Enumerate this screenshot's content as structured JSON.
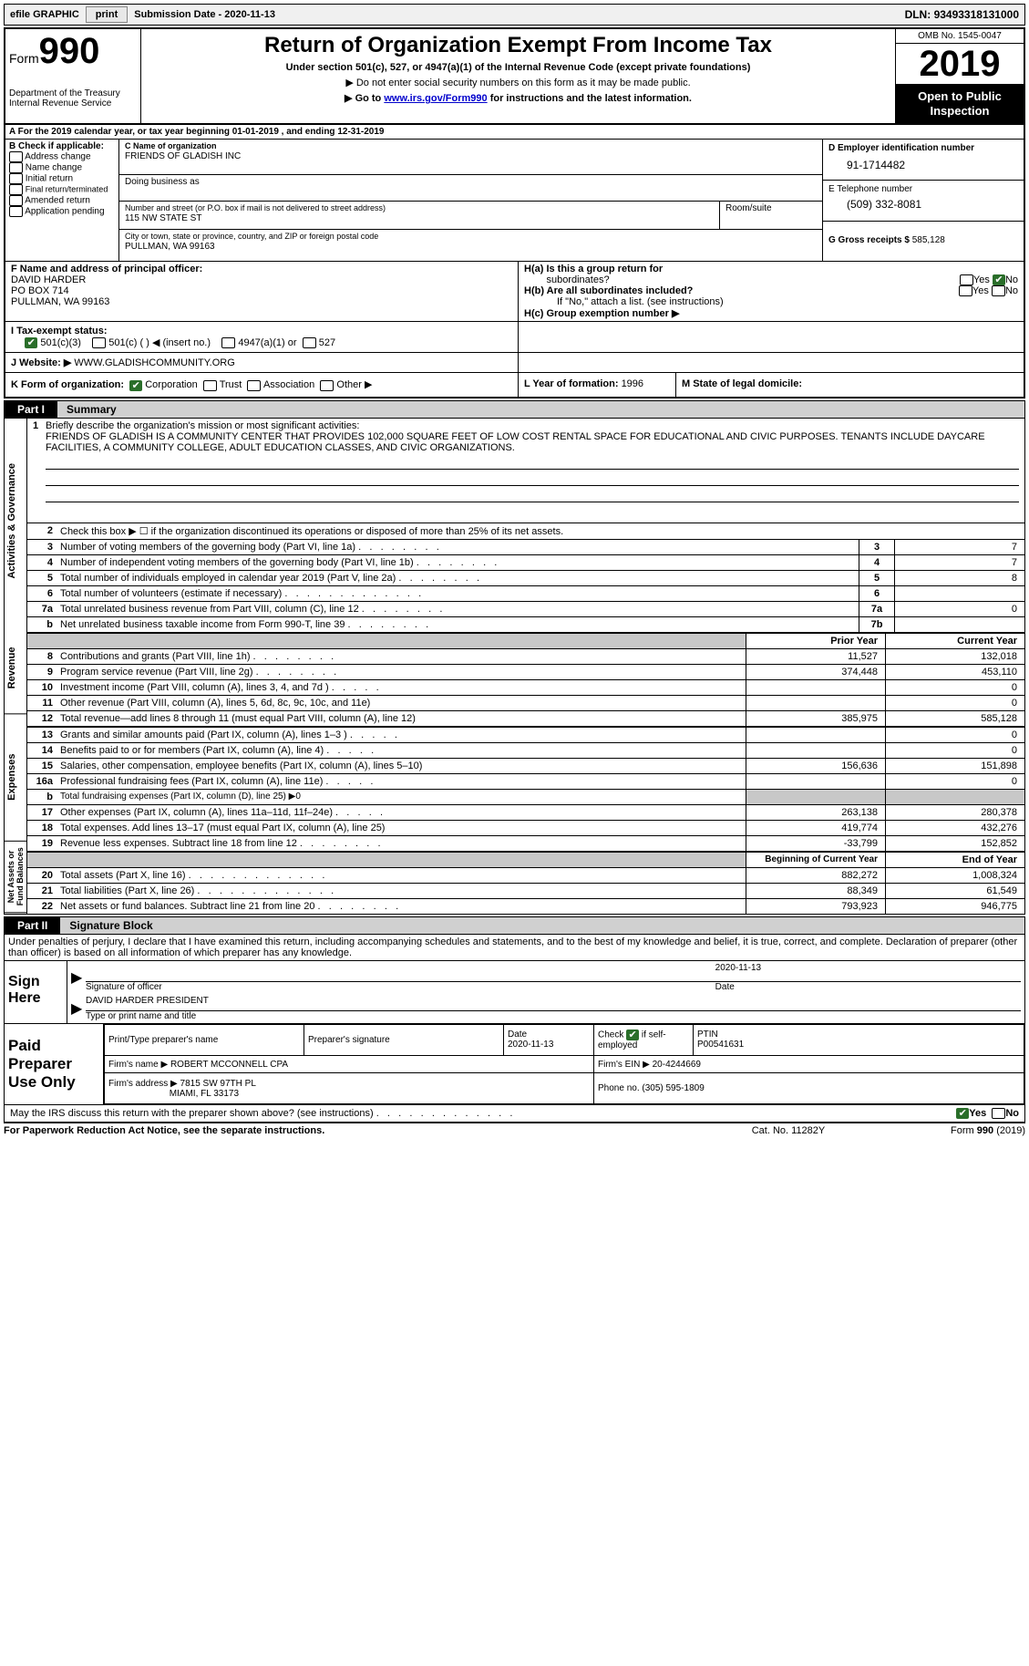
{
  "topbar": {
    "efile_label": "efile GRAPHIC",
    "print_btn": "print",
    "submission_label": "Submission Date - ",
    "submission_date": "2020-11-13",
    "dln_label": "DLN: ",
    "dln": "93493318131000"
  },
  "header": {
    "form_word": "Form",
    "form_num": "990",
    "dept1": "Department of the Treasury",
    "dept2": "Internal Revenue Service",
    "title": "Return of Organization Exempt From Income Tax",
    "sub1": "Under section 501(c), 527, or 4947(a)(1) of the Internal Revenue Code (except private foundations)",
    "sub2": "▶ Do not enter social security numbers on this form as it may be made public.",
    "sub3a": "▶ Go to ",
    "sub3_link": "www.irs.gov/Form990",
    "sub3b": " for instructions and the latest information.",
    "omb": "OMB No. 1545-0047",
    "year": "2019",
    "otp1": "Open to Public",
    "otp2": "Inspection"
  },
  "row_a": "A For the 2019 calendar year, or tax year beginning 01-01-2019    , and ending 12-31-2019",
  "box_b": {
    "label": "B Check if applicable:",
    "opts": [
      "Address change",
      "Name change",
      "Initial return",
      "Final return/terminated",
      "Amended return",
      "Application pending"
    ]
  },
  "box_c": {
    "label": "C Name of organization",
    "name": "FRIENDS OF GLADISH INC",
    "dba_label": "Doing business as",
    "addr_label": "Number and street (or P.O. box if mail is not delivered to street address)",
    "addr": "115 NW STATE ST",
    "room_label": "Room/suite",
    "city_label": "City or town, state or province, country, and ZIP or foreign postal code",
    "city": "PULLMAN, WA  99163"
  },
  "box_d": {
    "label": "D Employer identification number",
    "val": "91-1714482"
  },
  "box_e": {
    "label": "E Telephone number",
    "val": "(509) 332-8081"
  },
  "box_g": {
    "label": "G Gross receipts $ ",
    "val": "585,128"
  },
  "box_f": {
    "label": "F  Name and address of principal officer:",
    "name": "DAVID HARDER",
    "addr1": "PO BOX 714",
    "addr2": "PULLMAN, WA  99163"
  },
  "box_h": {
    "ha": "H(a)  Is this a group return for",
    "ha2": "subordinates?",
    "hb": "H(b)  Are all subordinates included?",
    "hb2": "If \"No,\" attach a list. (see instructions)",
    "hc": "H(c)  Group exemption number ▶",
    "yes": "Yes",
    "no": "No"
  },
  "row_i": {
    "label": "I   Tax-exempt status:",
    "o1": "501(c)(3)",
    "o2": "501(c) (  ) ◀ (insert no.)",
    "o3": "4947(a)(1) or",
    "o4": "527"
  },
  "row_j": {
    "label": "J   Website: ▶ ",
    "val": "WWW.GLADISHCOMMUNITY.ORG"
  },
  "row_k": {
    "label": "K Form of organization:",
    "o1": "Corporation",
    "o2": "Trust",
    "o3": "Association",
    "o4": "Other ▶"
  },
  "row_l": {
    "label": "L Year of formation: ",
    "val": "1996"
  },
  "row_m": {
    "label": "M State of legal domicile:",
    "val": ""
  },
  "part1": {
    "label": "Part I",
    "title": "Summary"
  },
  "vlabels": {
    "ag": "Activities & Governance",
    "rev": "Revenue",
    "exp": "Expenses",
    "na": "Net Assets or Fund Balances"
  },
  "mission": {
    "lead": "1",
    "label": "Briefly describe the organization's mission or most significant activities:",
    "text": "FRIENDS OF GLADISH IS A COMMUNITY CENTER THAT PROVIDES 102,000 SQUARE FEET OF LOW COST RENTAL SPACE FOR EDUCATIONAL AND CIVIC PURPOSES. TENANTS INCLUDE DAYCARE FACILITIES, A COMMUNITY COLLEGE, ADULT EDUCATION CLASSES, AND CIVIC ORGANIZATIONS."
  },
  "lines_ag": [
    {
      "n": "2",
      "d": "Check this box ▶ ☐  if the organization discontinued its operations or disposed of more than 25% of its net assets.",
      "box": "",
      "val": ""
    },
    {
      "n": "3",
      "d": "Number of voting members of the governing body (Part VI, line 1a)",
      "box": "3",
      "val": "7",
      "dots": "dots"
    },
    {
      "n": "4",
      "d": "Number of independent voting members of the governing body (Part VI, line 1b)",
      "box": "4",
      "val": "7",
      "dots": "dots"
    },
    {
      "n": "5",
      "d": "Total number of individuals employed in calendar year 2019 (Part V, line 2a)",
      "box": "5",
      "val": "8",
      "dots": "dots"
    },
    {
      "n": "6",
      "d": "Total number of volunteers (estimate if necessary)",
      "box": "6",
      "val": "",
      "dots": "dots-long"
    },
    {
      "n": "7a",
      "d": "Total unrelated business revenue from Part VIII, column (C), line 12",
      "box": "7a",
      "val": "0",
      "dots": "dots"
    },
    {
      "n": "b",
      "d": "Net unrelated business taxable income from Form 990-T, line 39",
      "box": "7b",
      "val": "",
      "dots": "dots"
    }
  ],
  "fin_hdr": {
    "prior": "Prior Year",
    "curr": "Current Year"
  },
  "lines_rev": [
    {
      "n": "8",
      "d": "Contributions and grants (Part VIII, line 1h)",
      "p": "11,527",
      "c": "132,018",
      "dots": "dots"
    },
    {
      "n": "9",
      "d": "Program service revenue (Part VIII, line 2g)",
      "p": "374,448",
      "c": "453,110",
      "dots": "dots"
    },
    {
      "n": "10",
      "d": "Investment income (Part VIII, column (A), lines 3, 4, and 7d )",
      "p": "",
      "c": "0",
      "dots": "dots-short"
    },
    {
      "n": "11",
      "d": "Other revenue (Part VIII, column (A), lines 5, 6d, 8c, 9c, 10c, and 11e)",
      "p": "",
      "c": "0",
      "dots": ""
    },
    {
      "n": "12",
      "d": "Total revenue—add lines 8 through 11 (must equal Part VIII, column (A), line 12)",
      "p": "385,975",
      "c": "585,128",
      "dots": ""
    }
  ],
  "lines_exp": [
    {
      "n": "13",
      "d": "Grants and similar amounts paid (Part IX, column (A), lines 1–3 )",
      "p": "",
      "c": "0",
      "dots": "dots-short"
    },
    {
      "n": "14",
      "d": "Benefits paid to or for members (Part IX, column (A), line 4)",
      "p": "",
      "c": "0",
      "dots": "dots-short"
    },
    {
      "n": "15",
      "d": "Salaries, other compensation, employee benefits (Part IX, column (A), lines 5–10)",
      "p": "156,636",
      "c": "151,898",
      "dots": ""
    },
    {
      "n": "16a",
      "d": "Professional fundraising fees (Part IX, column (A), line 11e)",
      "p": "",
      "c": "0",
      "dots": "dots-short"
    },
    {
      "n": "b",
      "d": "Total fundraising expenses (Part IX, column (D), line 25) ▶0",
      "p": "grey",
      "c": "grey",
      "dots": "",
      "small": true
    },
    {
      "n": "17",
      "d": "Other expenses (Part IX, column (A), lines 11a–11d, 11f–24e)",
      "p": "263,138",
      "c": "280,378",
      "dots": "dots-short"
    },
    {
      "n": "18",
      "d": "Total expenses. Add lines 13–17 (must equal Part IX, column (A), line 25)",
      "p": "419,774",
      "c": "432,276",
      "dots": ""
    },
    {
      "n": "19",
      "d": "Revenue less expenses. Subtract line 18 from line 12",
      "p": "-33,799",
      "c": "152,852",
      "dots": "dots"
    }
  ],
  "na_hdr": {
    "beg": "Beginning of Current Year",
    "end": "End of Year"
  },
  "lines_na": [
    {
      "n": "20",
      "d": "Total assets (Part X, line 16)",
      "p": "882,272",
      "c": "1,008,324",
      "dots": "dots-long"
    },
    {
      "n": "21",
      "d": "Total liabilities (Part X, line 26)",
      "p": "88,349",
      "c": "61,549",
      "dots": "dots-long"
    },
    {
      "n": "22",
      "d": "Net assets or fund balances. Subtract line 21 from line 20",
      "p": "793,923",
      "c": "946,775",
      "dots": "dots"
    }
  ],
  "part2": {
    "label": "Part II",
    "title": "Signature Block"
  },
  "perjury": "Under penalties of perjury, I declare that I have examined this return, including accompanying schedules and statements, and to the best of my knowledge and belief, it is true, correct, and complete. Declaration of preparer (other than officer) is based on all information of which preparer has any knowledge.",
  "sign": {
    "here": "Sign Here",
    "sig_label": "Signature of officer",
    "date_label": "Date",
    "date_val": "2020-11-13",
    "name": "DAVID HARDER  PRESIDENT",
    "name_label": "Type or print name and title"
  },
  "prep": {
    "label": "Paid Preparer Use Only",
    "c1": "Print/Type preparer's name",
    "c2": "Preparer's signature",
    "c3": "Date",
    "c3v": "2020-11-13",
    "c4a": "Check",
    "c4b": "if self-employed",
    "c5": "PTIN",
    "c5v": "P00541631",
    "firm_label": "Firm's name    ▶ ",
    "firm": "ROBERT MCCONNELL CPA",
    "ein_label": "Firm's EIN ▶ ",
    "ein": "20-4244669",
    "addr_label": "Firm's address ▶ ",
    "addr1": "7815 SW 97TH PL",
    "addr2": "MIAMI, FL  33173",
    "phone_label": "Phone no. ",
    "phone": "(305) 595-1809"
  },
  "discuss": "May the IRS discuss this return with the preparer shown above? (see instructions)",
  "footer": {
    "left": "For Paperwork Reduction Act Notice, see the separate instructions.",
    "mid": "Cat. No. 11282Y",
    "right": "Form 990 (2019)"
  }
}
